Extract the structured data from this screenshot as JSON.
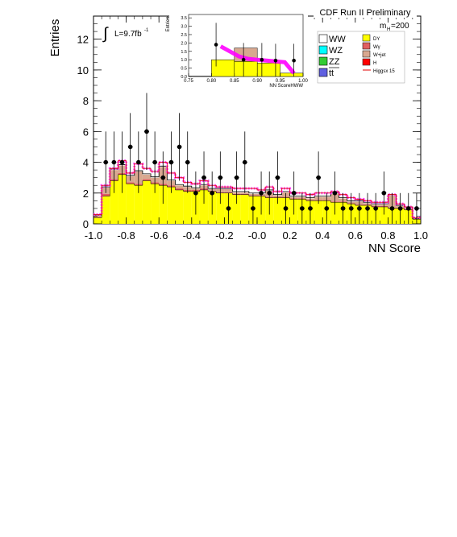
{
  "chart_data": {
    "type": "bar",
    "title": "CDF Run II Preliminary",
    "xlabel": "NN Score",
    "ylabel": "Entries",
    "xlim": [
      -1.0,
      1.0
    ],
    "ylim": [
      0,
      13.5
    ],
    "x_ticks": [
      "-1.0",
      "-0.8",
      "-0.6",
      "-0.4",
      "-0.2",
      "-0.0",
      "0.2",
      "0.4",
      "0.6",
      "0.8",
      "1.0"
    ],
    "y_ticks": [
      "0",
      "2",
      "4",
      "6",
      "8",
      "10",
      "12"
    ],
    "luminosity": "L=9.7fb",
    "luminosity_sup": "-1",
    "mass_label": "m",
    "mass_sub": "H",
    "mass_value": "=200",
    "bin_edges": [
      -1.0,
      -0.95,
      -0.9,
      -0.85,
      -0.8,
      -0.75,
      -0.7,
      -0.65,
      -0.6,
      -0.55,
      -0.5,
      -0.45,
      -0.4,
      -0.35,
      -0.3,
      -0.25,
      -0.2,
      -0.15,
      -0.1,
      -0.05,
      0.0,
      0.05,
      0.1,
      0.15,
      0.2,
      0.25,
      0.3,
      0.35,
      0.4,
      0.45,
      0.5,
      0.55,
      0.6,
      0.65,
      0.7,
      0.75,
      0.8,
      0.85,
      0.9,
      0.95,
      1.0
    ],
    "series": [
      {
        "name": "DY",
        "color": "#ffff00",
        "values": [
          0.4,
          1.8,
          2.8,
          3.2,
          2.6,
          2.5,
          2.8,
          2.6,
          2.5,
          2.4,
          2.2,
          2.1,
          2.1,
          2.2,
          2.1,
          2.0,
          2.0,
          1.9,
          1.9,
          1.8,
          1.8,
          1.7,
          1.7,
          1.7,
          1.6,
          1.6,
          1.5,
          1.5,
          1.5,
          1.4,
          1.4,
          1.3,
          1.2,
          1.2,
          1.1,
          1.1,
          1.0,
          1.0,
          0.9,
          0.3
        ]
      },
      {
        "name": "Wγ",
        "color": "#e06060",
        "values": [
          0.05,
          0.15,
          0.1,
          0.1,
          0.1,
          0.1,
          0.1,
          0.1,
          0.1,
          0.1,
          0.1,
          0.1,
          0.1,
          0.1,
          0.05,
          0.05,
          0.05,
          0.05,
          0.05,
          0.05,
          0.05,
          0.05,
          0.05,
          0.05,
          0.05,
          0.05,
          0.05,
          0.05,
          0.05,
          0.05,
          0.05,
          0.05,
          0.05,
          0.05,
          0.05,
          0.05,
          0.05,
          0.05,
          0.05,
          0.02
        ]
      },
      {
        "name": "W+jet",
        "color": "#d8a890",
        "values": [
          0.1,
          0.4,
          0.6,
          0.5,
          0.4,
          0.8,
          0.3,
          0.3,
          1.1,
          0.3,
          0.2,
          0.2,
          0.1,
          0.2,
          0.1,
          0.2,
          0.2,
          0.1,
          0.1,
          0.1,
          0.1,
          0.4,
          0.1,
          0.3,
          0.1,
          0.1,
          0.1,
          0.2,
          0.2,
          0.5,
          0.2,
          0.1,
          0.2,
          0.1,
          0.1,
          0.1,
          0.8,
          0.1,
          0.1,
          0.0
        ]
      },
      {
        "name": "WW",
        "color": "#ffffff",
        "values": [
          0.03,
          0.05,
          0.05,
          0.05,
          0.05,
          0.05,
          0.05,
          0.05,
          0.05,
          0.05,
          0.05,
          0.05,
          0.05,
          0.05,
          0.05,
          0.05,
          0.05,
          0.05,
          0.05,
          0.05,
          0.05,
          0.05,
          0.05,
          0.05,
          0.05,
          0.05,
          0.05,
          0.05,
          0.05,
          0.05,
          0.05,
          0.05,
          0.05,
          0.05,
          0.05,
          0.05,
          0.05,
          0.05,
          0.05,
          0.02
        ]
      }
    ],
    "signal": {
      "name": "Higgsx 15",
      "color": "#e00000",
      "values": [
        0.6,
        2.5,
        3.6,
        4.1,
        3.3,
        3.9,
        3.6,
        3.4,
        4.0,
        3.3,
        3.0,
        2.7,
        2.6,
        2.8,
        2.5,
        2.4,
        2.4,
        2.3,
        2.3,
        2.3,
        2.2,
        2.4,
        2.1,
        2.3,
        2.0,
        2.0,
        1.9,
        2.0,
        2.0,
        2.1,
        1.9,
        1.7,
        1.6,
        1.5,
        1.4,
        1.4,
        1.9,
        1.3,
        1.1,
        0.4
      ]
    },
    "data_points": [
      {
        "x": -0.925,
        "y": 4,
        "err": 2.0
      },
      {
        "x": -0.875,
        "y": 4,
        "err": 2.0
      },
      {
        "x": -0.825,
        "y": 4,
        "err": 2.0
      },
      {
        "x": -0.775,
        "y": 5,
        "err": 2.2
      },
      {
        "x": -0.725,
        "y": 4,
        "err": 2.0
      },
      {
        "x": -0.675,
        "y": 6,
        "err": 2.5
      },
      {
        "x": -0.625,
        "y": 4,
        "err": 2.0
      },
      {
        "x": -0.575,
        "y": 3,
        "err": 1.7
      },
      {
        "x": -0.525,
        "y": 4,
        "err": 2.0
      },
      {
        "x": -0.475,
        "y": 5,
        "err": 2.2
      },
      {
        "x": -0.425,
        "y": 4,
        "err": 2.0
      },
      {
        "x": -0.375,
        "y": 2,
        "err": 1.4
      },
      {
        "x": -0.325,
        "y": 3,
        "err": 1.7
      },
      {
        "x": -0.275,
        "y": 2,
        "err": 1.4
      },
      {
        "x": -0.225,
        "y": 3,
        "err": 1.7
      },
      {
        "x": -0.175,
        "y": 1,
        "err": 1.0
      },
      {
        "x": -0.125,
        "y": 3,
        "err": 1.7
      },
      {
        "x": -0.075,
        "y": 4,
        "err": 2.0
      },
      {
        "x": -0.025,
        "y": 1,
        "err": 1.0
      },
      {
        "x": 0.025,
        "y": 2,
        "err": 1.4
      },
      {
        "x": 0.075,
        "y": 2,
        "err": 1.4
      },
      {
        "x": 0.125,
        "y": 3,
        "err": 1.7
      },
      {
        "x": 0.175,
        "y": 1,
        "err": 1.0
      },
      {
        "x": 0.225,
        "y": 2,
        "err": 1.4
      },
      {
        "x": 0.275,
        "y": 1,
        "err": 1.0
      },
      {
        "x": 0.325,
        "y": 1,
        "err": 1.0
      },
      {
        "x": 0.375,
        "y": 3,
        "err": 1.7
      },
      {
        "x": 0.425,
        "y": 1,
        "err": 1.0
      },
      {
        "x": 0.475,
        "y": 2,
        "err": 1.4
      },
      {
        "x": 0.525,
        "y": 1,
        "err": 1.0
      },
      {
        "x": 0.575,
        "y": 1,
        "err": 1.0
      },
      {
        "x": 0.625,
        "y": 1,
        "err": 1.0
      },
      {
        "x": 0.675,
        "y": 1,
        "err": 1.0
      },
      {
        "x": 0.725,
        "y": 1,
        "err": 1.0
      },
      {
        "x": 0.775,
        "y": 2,
        "err": 1.4
      },
      {
        "x": 0.825,
        "y": 1,
        "err": 1.0
      },
      {
        "x": 0.875,
        "y": 1,
        "err": 1.0
      },
      {
        "x": 0.925,
        "y": 1,
        "err": 1.0
      },
      {
        "x": 0.975,
        "y": 1,
        "err": 1.0
      }
    ],
    "legend_left": [
      {
        "label": "WW",
        "color": "#ffffff"
      },
      {
        "label": "WZ",
        "color": "#00ffff"
      },
      {
        "label": "ZZ",
        "color": "#33cc33"
      },
      {
        "label": "tt",
        "color": "#6060e0",
        "overline": true
      }
    ],
    "legend_right": [
      {
        "label": "DY",
        "color": "#ffff00",
        "kind": "box"
      },
      {
        "label": "Wγ",
        "color": "#e06060",
        "kind": "box"
      },
      {
        "label": "W+jet",
        "color": "#d8a890",
        "kind": "box"
      },
      {
        "label": "H",
        "color": "#ff0000",
        "kind": "box"
      },
      {
        "label": "Higgsx 15",
        "color": "#e00000",
        "kind": "line"
      }
    ],
    "inset": {
      "xlabel": "NN ScoreHWW",
      "ylabel": "Entries",
      "xlim": [
        0.75,
        1.0
      ],
      "ylim": [
        0,
        3.7
      ],
      "x_ticks": [
        "0.75",
        "0.80",
        "0.85",
        "0.90",
        "0.95",
        "1.00"
      ],
      "y_ticks": [
        "0.0",
        "0.5",
        "1.0",
        "1.5",
        "2.0",
        "2.5",
        "3.0",
        "3.5"
      ],
      "bin_edges": [
        0.75,
        0.8,
        0.85,
        0.9,
        0.95,
        1.0
      ],
      "dy": [
        0.02,
        1.0,
        0.9,
        0.8,
        0.2
      ],
      "wjet": [
        0.0,
        0.0,
        0.8,
        0.0,
        0.0
      ],
      "signal": [
        [
          0.82,
          1.8
        ],
        [
          0.84,
          1.5
        ],
        [
          0.86,
          1.2
        ],
        [
          0.88,
          1.05
        ],
        [
          0.9,
          1.0
        ],
        [
          0.92,
          0.95
        ],
        [
          0.94,
          0.9
        ],
        [
          0.96,
          0.85
        ],
        [
          0.98,
          0.2
        ]
      ],
      "data_points": [
        {
          "x": 0.81,
          "y": 1.9,
          "err": 1.3
        },
        {
          "x": 0.87,
          "y": 1.0,
          "err": 1.0
        },
        {
          "x": 0.91,
          "y": 1.0,
          "err": 1.0
        },
        {
          "x": 0.94,
          "y": 0.95,
          "err": 1.0
        },
        {
          "x": 0.98,
          "y": 0.95,
          "err": 1.0
        }
      ]
    }
  }
}
